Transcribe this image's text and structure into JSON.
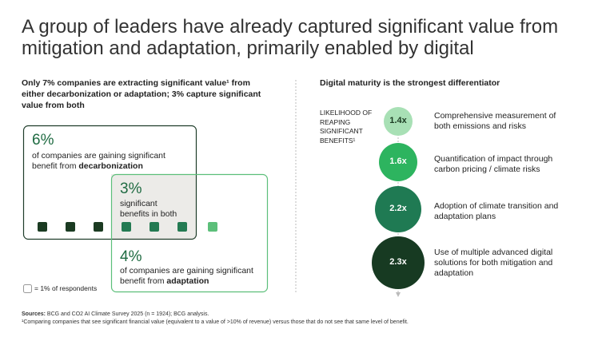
{
  "header": {
    "title": "A group of leaders have already captured significant value from mitigation and adaptation, primarily enabled by digital"
  },
  "left": {
    "heading": "Only 7% companies are extracting significant value¹ from either decarbonization or adaptation; 3% capture significant value from both",
    "decarbonization": {
      "percent": "6%",
      "text": "of companies are gaining significant benefit from ",
      "bold": "decarbonization"
    },
    "both": {
      "percent": "3%",
      "text": "significant benefits in both"
    },
    "adaptation": {
      "percent": "4%",
      "text": "of companies are gaining significant benefit from ",
      "bold": "adaptation"
    },
    "legend": "= 1% of respondents"
  },
  "right": {
    "heading": "Digital maturity is the strongest differentiator",
    "axis_label": "LIKELIHOOD OF REAPING SIGNIFICANT BENEFITS¹",
    "items": [
      {
        "value": "1.4x",
        "label": "Comprehensive measurement of both emissions and risks"
      },
      {
        "value": "1.6x",
        "label": "Quantification of impact through carbon pricing / climate risks"
      },
      {
        "value": "2.2x",
        "label": "Adoption of climate transition and adaptation plans"
      },
      {
        "value": "2.3x",
        "label": "Use of multiple advanced digital solutions for both mitigation and adaptation"
      }
    ]
  },
  "footer": {
    "sources_label": "Sources:",
    "sources": " BCG and CO2 AI Climate Survey 2025 (n = 1924); BCG analysis.",
    "footnote": "¹Comparing companies that see significant financial value (equivalent to a value of >10% of revenue) versus those that do not see that same level of benefit."
  }
}
